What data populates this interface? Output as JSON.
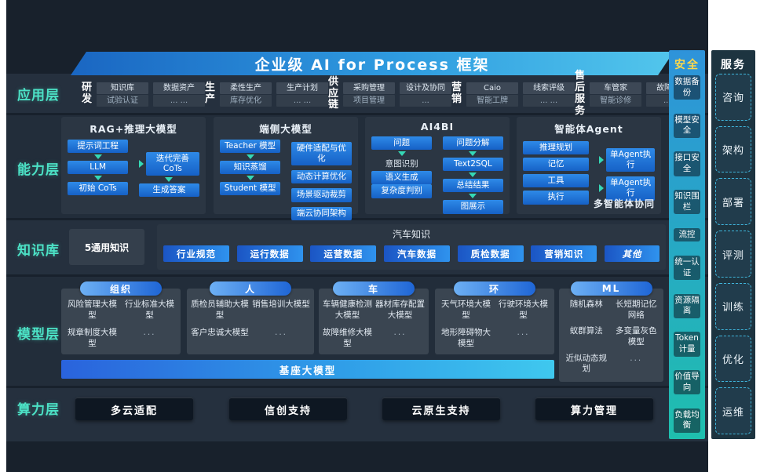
{
  "banner": {
    "title": "企业级 AI for Process 框架"
  },
  "colors": {
    "accent_teal": "#4CE2C6",
    "accent_blue": "#2196F3",
    "banner_from": "#1A66C2",
    "banner_to": "#52C6EC",
    "security_header_yellow": "#FFD84A"
  },
  "app_row": {
    "label": "应用层",
    "groups": [
      {
        "name": "研发",
        "cards": [
          {
            "top": "知识库",
            "bottom": "试验认证"
          },
          {
            "top": "数据资产",
            "bottom": "... ..."
          }
        ]
      },
      {
        "name": "生产",
        "cards": [
          {
            "top": "柔性生产",
            "bottom": "库存优化"
          },
          {
            "top": "生产计划",
            "bottom": "... ..."
          }
        ]
      },
      {
        "name": "供应链",
        "cards": [
          {
            "top": "采购管理",
            "bottom": "项目管理"
          },
          {
            "top": "设计及协同",
            "bottom": "..."
          }
        ]
      },
      {
        "name": "营销",
        "cards": [
          {
            "top": "Caio",
            "bottom": "智能工牌"
          },
          {
            "top": "线索评级",
            "bottom": "... ..."
          }
        ]
      },
      {
        "name": "售后服务",
        "cards": [
          {
            "top": "车管家",
            "bottom": "智能诊修"
          },
          {
            "top": "故障预测",
            "bottom": "... ..."
          }
        ]
      }
    ]
  },
  "capability": {
    "label": "能力层",
    "boxes": [
      {
        "title": "RAG+推理大模型",
        "left": [
          {
            "t": "提示词工程"
          },
          {
            "t": "LLM",
            "pre": "down"
          },
          {
            "t": "初始 CoTs",
            "pre": "down"
          }
        ],
        "right": [
          {
            "t": "迭代完善CoTs",
            "pre": "right"
          },
          {
            "t": "生成答案",
            "pre": "down"
          }
        ],
        "caption": ""
      },
      {
        "title": "端侧大模型",
        "left": [
          {
            "t": "Teacher 模型"
          },
          {
            "t": "知识蒸馏",
            "pre": "down"
          },
          {
            "t": "Student 模型",
            "pre": "down"
          }
        ],
        "right": [
          {
            "t": "硬件适配与优化"
          },
          {
            "t": "动态计算优化"
          },
          {
            "t": "场景驱动裁剪"
          },
          {
            "t": "端云协同架构"
          }
        ],
        "caption": ""
      },
      {
        "title": "AI4BI",
        "left": [
          {
            "t": "问题"
          },
          {
            "t": "意图识别",
            "pre": "down",
            "plain": true
          },
          {
            "t": "语义生成"
          },
          {
            "t": "复杂度判别"
          }
        ],
        "right": [
          {
            "t": "问题分解"
          },
          {
            "t": "Text2SQL",
            "pre": "down"
          },
          {
            "t": "总结结果",
            "pre": "down"
          },
          {
            "t": "图展示",
            "pre": "down"
          }
        ],
        "caption": ""
      },
      {
        "title": "智能体Agent",
        "left": [
          {
            "t": "推理规划"
          },
          {
            "t": "记忆"
          },
          {
            "t": "工具"
          },
          {
            "t": "执行"
          }
        ],
        "right": [
          {
            "t": "单Agent执行",
            "pre": "right"
          },
          {
            "t": "单Agent执行",
            "pre": "right"
          }
        ],
        "caption": "多智能体协同"
      }
    ]
  },
  "knowledge": {
    "label": "知识库",
    "general": "5通用知识",
    "domain_title": "汽车知识",
    "pills": [
      "行业规范",
      "运行数据",
      "运营数据",
      "汽车数据",
      "质检数据",
      "营销知识",
      "其他"
    ]
  },
  "model": {
    "label": "模型层",
    "groups": [
      {
        "pill": "组织",
        "cells": [
          "风险管理大模型",
          "行业标准大模型",
          "规章制度大模型",
          "..."
        ]
      },
      {
        "pill": "人",
        "cells": [
          "质检员辅助大模型",
          "销售培训大模型",
          "客户忠诚大模型",
          "..."
        ]
      },
      {
        "pill": "车",
        "cells": [
          "车辆健康检测大模型",
          "器材库存配置大模型",
          "故障维修大模型",
          "..."
        ]
      },
      {
        "pill": "环",
        "cells": [
          "天气环境大模型",
          "行驶环境大模型",
          "地形障碍物大模型",
          "..."
        ]
      },
      {
        "pill": "ML",
        "cells": [
          "随机森林",
          "长短期记忆网络",
          "蚁群算法",
          "多变量灰色模型",
          "近似动态规划",
          "..."
        ]
      }
    ],
    "base_bar": "基座大模型"
  },
  "compute": {
    "label": "算力层",
    "items": [
      "多云适配",
      "信创支持",
      "云原生支持",
      "算力管理"
    ]
  },
  "security": {
    "header": "安全",
    "items": [
      "数据备份",
      "模型安全",
      "接口安全",
      "知识围栏",
      "流控",
      "统一认证",
      "资源隔离",
      "Token计量",
      "价值导向",
      "负载均衡"
    ]
  },
  "services": {
    "header": "服务",
    "items": [
      "咨询",
      "架构",
      "部署",
      "评测",
      "训练",
      "优化",
      "运维"
    ]
  }
}
